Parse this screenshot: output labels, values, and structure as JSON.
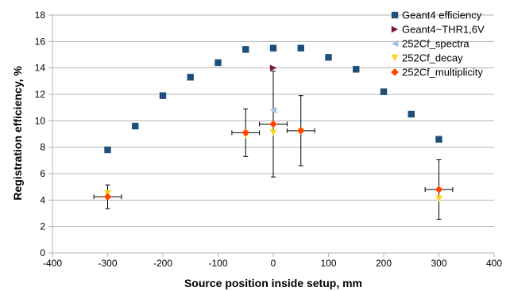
{
  "chart_data": {
    "type": "scatter",
    "xlabel": "Source position inside setup, mm",
    "ylabel": "Registration efficiency, %",
    "xlim": [
      -400,
      400
    ],
    "ylim": [
      0,
      18
    ],
    "x_ticks": [
      -400,
      -300,
      -200,
      -100,
      0,
      100,
      200,
      300,
      400
    ],
    "y_ticks": [
      0,
      2,
      4,
      6,
      8,
      10,
      12,
      14,
      16,
      18
    ],
    "grid": "horizontal",
    "legend_position": "top-right",
    "series": [
      {
        "name": "Geant4 efficiency",
        "marker": "square",
        "color": "#1f4e79",
        "points": [
          {
            "x": -300,
            "y": 7.8
          },
          {
            "x": -250,
            "y": 9.6
          },
          {
            "x": -200,
            "y": 11.9
          },
          {
            "x": -150,
            "y": 13.3
          },
          {
            "x": -100,
            "y": 14.4
          },
          {
            "x": -50,
            "y": 15.4
          },
          {
            "x": 0,
            "y": 15.5
          },
          {
            "x": 50,
            "y": 15.5
          },
          {
            "x": 100,
            "y": 14.8
          },
          {
            "x": 150,
            "y": 13.9
          },
          {
            "x": 200,
            "y": 12.2
          },
          {
            "x": 250,
            "y": 10.5
          },
          {
            "x": 300,
            "y": 8.6
          }
        ]
      },
      {
        "name": "Geant4~THR1,6V",
        "marker": "triangle-right",
        "color": "#7b1c2e",
        "points": [
          {
            "x": 0,
            "y": 14.0
          }
        ]
      },
      {
        "name": "252Cf_spectra",
        "marker": "triangle-left",
        "color": "#9dc3e6",
        "points": [
          {
            "x": 0,
            "y": 10.8
          }
        ]
      },
      {
        "name": "252Cf_decay",
        "marker": "triangle-down",
        "color": "#ffd320",
        "points": [
          {
            "x": -300,
            "y": 4.5
          },
          {
            "x": -50,
            "y": 8.9
          },
          {
            "x": 0,
            "y": 9.1
          },
          {
            "x": 50,
            "y": 9.2
          },
          {
            "x": 300,
            "y": 4.1
          }
        ]
      },
      {
        "name": "252Cf_multiplicity",
        "marker": "diamond",
        "color": "#ff4500",
        "points": [
          {
            "x": -300,
            "y": 4.25,
            "xerr": 25,
            "yerr": 0.9
          },
          {
            "x": -50,
            "y": 9.1,
            "xerr": 25,
            "yerr": 1.8
          },
          {
            "x": 0,
            "y": 9.75,
            "xerr": 25,
            "yerr": 4.0
          },
          {
            "x": 50,
            "y": 9.25,
            "xerr": 25,
            "yerr": 2.65
          },
          {
            "x": 300,
            "y": 4.8,
            "xerr": 25,
            "yerr": 2.25
          }
        ]
      }
    ]
  }
}
